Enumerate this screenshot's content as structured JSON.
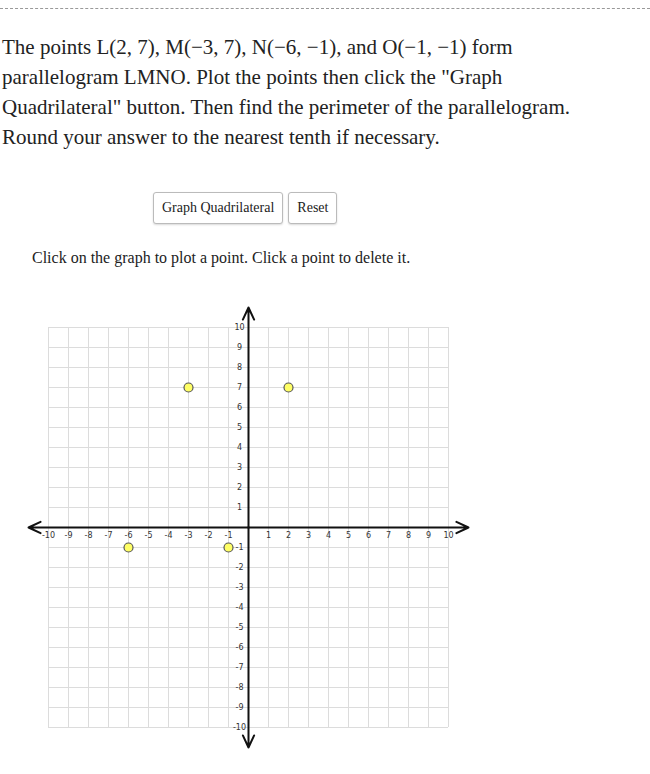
{
  "header": {
    "problem_lines": [
      "The points L(2, 7), M(−3, 7), N(−6, −1), and O(−1, −1) form",
      "parallelogram LMNO. Plot the points then click the \"Graph",
      "Quadrilateral\" button. Then find the perimeter of the parallelogram.",
      "Round your answer to the nearest tenth if necessary."
    ],
    "buttons": [
      "Graph Quadrilateral",
      "Reset"
    ],
    "instruction": "Click on the graph to plot a point. Click a point to delete it."
  },
  "chart_data": {
    "type": "scatter",
    "x": [
      2,
      -3,
      -6,
      -1
    ],
    "values": [
      7,
      7,
      -1,
      -1
    ],
    "color": "#ffff66",
    "marker": "circle",
    "xlim": [
      -11,
      11
    ],
    "ylim": [
      -11,
      11
    ],
    "xticks": [
      -10,
      -9,
      -8,
      -7,
      -6,
      -5,
      -4,
      -3,
      -2,
      -1,
      1,
      2,
      3,
      4,
      5,
      6,
      7,
      8,
      9,
      10
    ],
    "yticks": [
      -10,
      -9,
      -8,
      -7,
      -6,
      -5,
      -4,
      -3,
      -2,
      -1,
      1,
      2,
      3,
      4,
      5,
      6,
      7,
      8,
      9,
      10
    ],
    "grid": true
  }
}
